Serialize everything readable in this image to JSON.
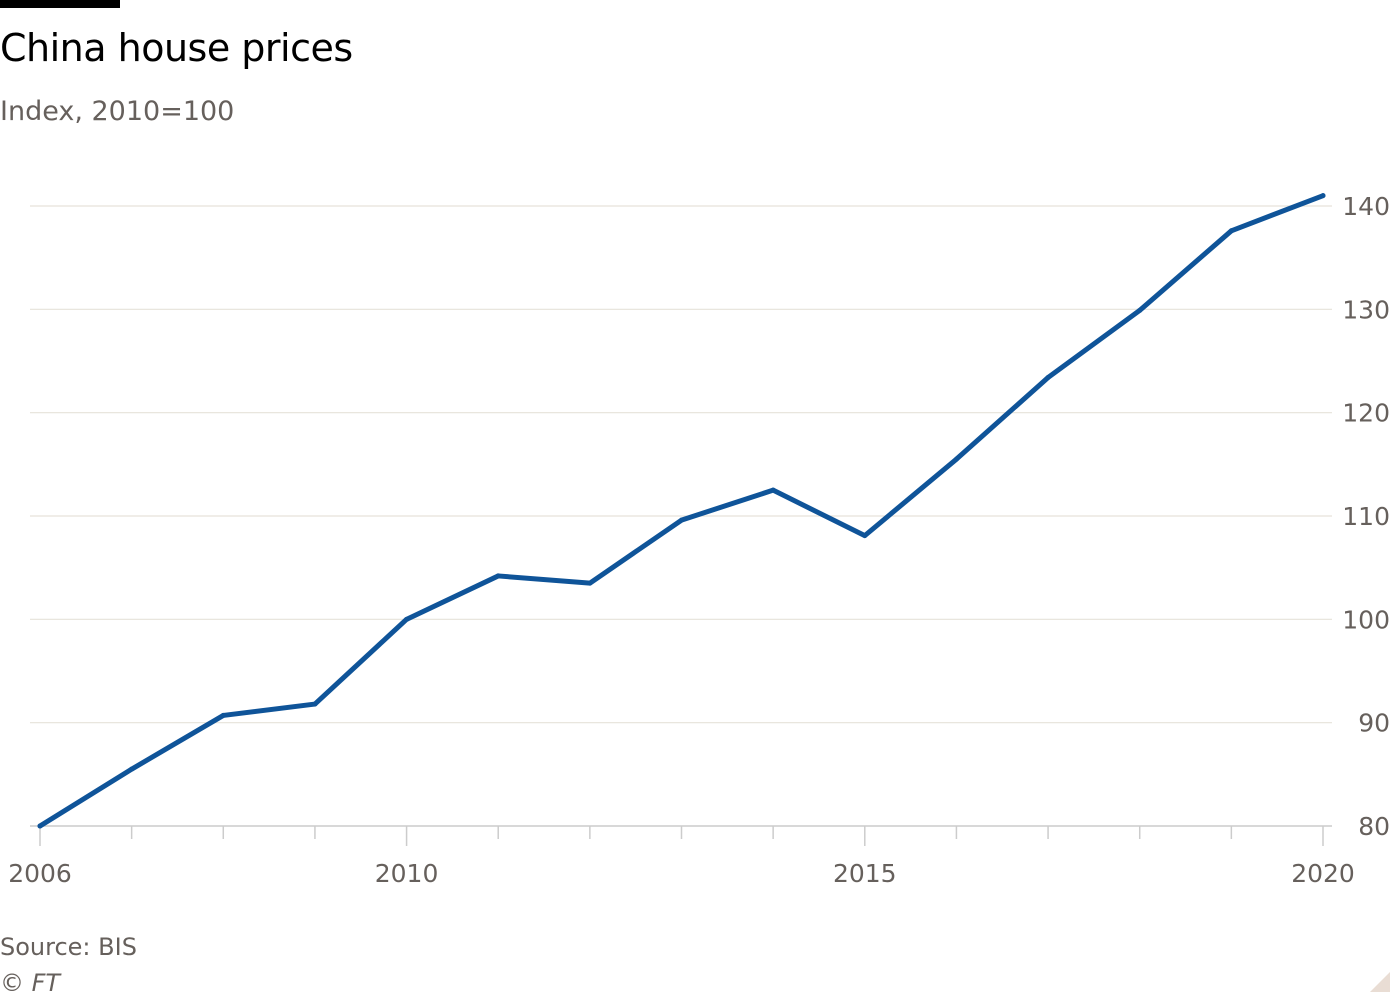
{
  "header": {
    "title": "China house prices",
    "subtitle": "Index, 2010=100"
  },
  "footer": {
    "source": "Source: BIS",
    "copyright": "© FT"
  },
  "colors": {
    "line": "#0f5499",
    "gridline": "#e6e2da",
    "text": "#66605c",
    "axis": "#cccccc"
  },
  "chart_data": {
    "type": "line",
    "title": "China house prices",
    "subtitle": "Index, 2010=100",
    "xlabel": "",
    "ylabel": "",
    "x": [
      2006,
      2007,
      2008,
      2009,
      2010,
      2011,
      2012,
      2013,
      2014,
      2015,
      2016,
      2017,
      2018,
      2019,
      2020
    ],
    "series": [
      {
        "values": [
          80.0,
          85.5,
          90.7,
          91.8,
          100.0,
          104.2,
          103.5,
          109.6,
          112.5,
          108.1,
          115.5,
          123.4,
          129.9,
          137.6,
          141.0
        ]
      }
    ],
    "xlim": [
      2006,
      2020
    ],
    "ylim": [
      80,
      140
    ],
    "xticks": [
      2006,
      2010,
      2015,
      2020
    ],
    "xminor_ticks": [
      2007,
      2008,
      2009,
      2011,
      2012,
      2013,
      2014,
      2016,
      2017,
      2018,
      2019
    ],
    "yticks": [
      80,
      90,
      100,
      110,
      120,
      130,
      140
    ],
    "y_axis_side": "right",
    "grid": "horizontal",
    "legend": "none"
  }
}
